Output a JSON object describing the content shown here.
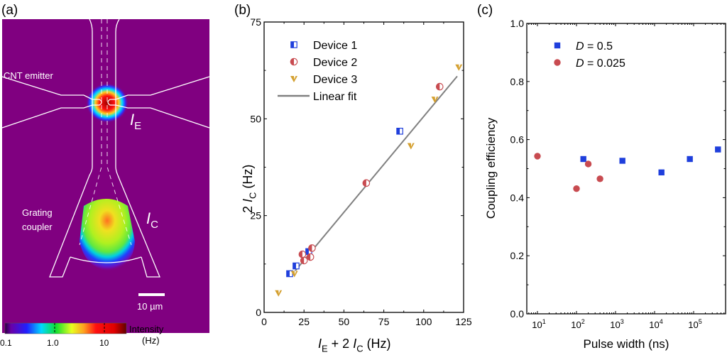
{
  "panels": {
    "a": {
      "label": "(a)",
      "emitter_label": "CNT emitter",
      "emitter_current": {
        "base": "I",
        "sub": "E"
      },
      "coupler_label_line1": "Grating",
      "coupler_label_line2": "coupler",
      "coupler_current": {
        "base": "I",
        "sub": "C"
      },
      "scale_bar_label": "10 µm",
      "background_color": "#800080",
      "colorbar": {
        "title_line1": "Intensity",
        "title_line2": "(Hz)",
        "ticks": [
          "0.1",
          "1.0",
          "10"
        ],
        "scale": "log"
      }
    },
    "b": {
      "label": "(b)"
    },
    "c": {
      "label": "(c)"
    }
  },
  "chart_data": [
    {
      "type": "scatter",
      "panel": "b",
      "xlabel": {
        "parts": [
          {
            "t": "I",
            "i": true
          },
          {
            "t": "E",
            "sub": true
          },
          {
            "t": " + 2 "
          },
          {
            "t": "I",
            "i": true
          },
          {
            "t": "C",
            "sub": true
          },
          {
            "t": " (Hz)"
          }
        ]
      },
      "ylabel": {
        "parts": [
          {
            "t": "2 "
          },
          {
            "t": "I",
            "i": true
          },
          {
            "t": "C",
            "sub": true
          },
          {
            "t": " (Hz)"
          }
        ]
      },
      "xlim": [
        0,
        125
      ],
      "ylim": [
        0,
        75
      ],
      "xticks": [
        0,
        25,
        50,
        75,
        100,
        125
      ],
      "yticks": [
        0,
        25,
        50,
        75
      ],
      "grid": false,
      "legend_position": "top-left",
      "series": [
        {
          "name": "Device 1",
          "marker": "half-square",
          "color": "#1f3fdc",
          "points": [
            [
              16,
              10
            ],
            [
              20,
              12
            ],
            [
              28,
              15.7
            ],
            [
              85,
              46.8
            ]
          ]
        },
        {
          "name": "Device 2",
          "marker": "half-circle",
          "color": "#c84b50",
          "points": [
            [
              24,
              15
            ],
            [
              25,
              13.4
            ],
            [
              29,
              14.3
            ],
            [
              30,
              16.6
            ],
            [
              64,
              33.4
            ],
            [
              110,
              58.3
            ]
          ]
        },
        {
          "name": "Device 3",
          "marker": "triangle-down",
          "color": "#d4a030",
          "points": [
            [
              9,
              5
            ],
            [
              19,
              10
            ],
            [
              92,
              43
            ],
            [
              107,
              55
            ],
            [
              122,
              63.3
            ]
          ]
        },
        {
          "name": "Linear fit",
          "marker": "line",
          "color": "#808080",
          "points": [
            [
              19,
              10.5
            ],
            [
              121,
              61
            ]
          ]
        }
      ]
    },
    {
      "type": "scatter",
      "panel": "c",
      "xlabel": "Pulse width (ns)",
      "ylabel": "Coupling efficiency",
      "xscale": "log",
      "xlim": [
        5,
        700000
      ],
      "ylim": [
        0,
        1.0
      ],
      "xticks": [
        10,
        100,
        1000,
        10000,
        100000
      ],
      "xtick_labels": [
        "10^1",
        "10^2",
        "10^3",
        "10^4",
        "10^5"
      ],
      "yticks": [
        0.0,
        0.2,
        0.4,
        0.6,
        0.8,
        1.0
      ],
      "ytick_labels": [
        "0.0",
        "0.2",
        "0.4",
        "0.6",
        "0.8",
        "1.0"
      ],
      "grid": false,
      "legend_position": "top-left",
      "series": [
        {
          "name": "D = 0.5",
          "name_parts": [
            {
              "t": "D",
              "i": true
            },
            {
              "t": " = 0.5"
            }
          ],
          "marker": "square",
          "color": "#1f3fdc",
          "points": [
            [
              150,
              0.533
            ],
            [
              1500,
              0.527
            ],
            [
              15000,
              0.487
            ],
            [
              80000,
              0.533
            ],
            [
              420000,
              0.566
            ]
          ]
        },
        {
          "name": "D = 0.025",
          "name_parts": [
            {
              "t": "D",
              "i": true
            },
            {
              "t": " = 0.025"
            }
          ],
          "marker": "circle",
          "color": "#c84b50",
          "points": [
            [
              10,
              0.543
            ],
            [
              100,
              0.431
            ],
            [
              200,
              0.516
            ],
            [
              400,
              0.465
            ]
          ]
        }
      ]
    }
  ]
}
